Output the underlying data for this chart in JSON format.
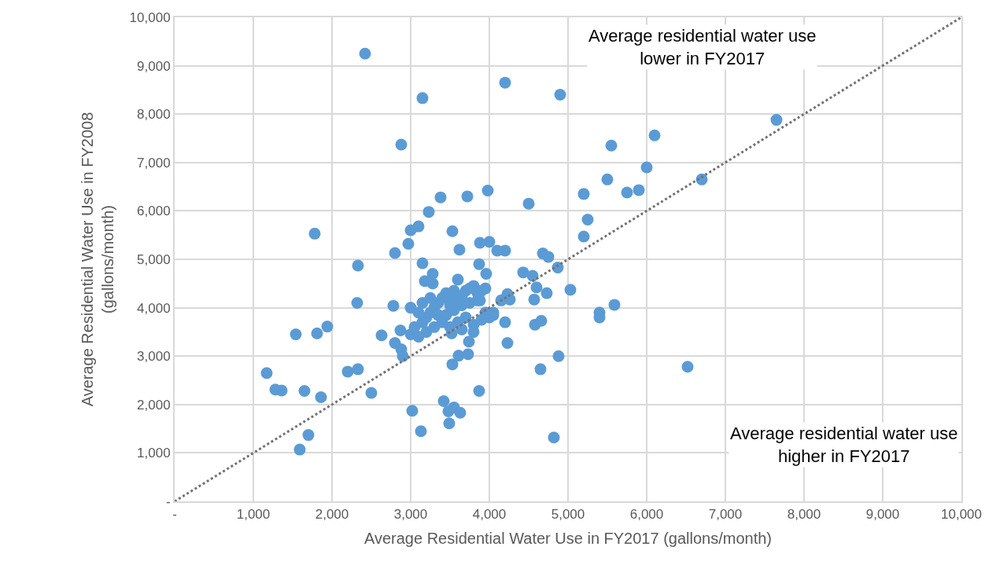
{
  "chart_data": {
    "type": "scatter",
    "xlabel": "Average Residential Water Use in FY2017 (gallons/month)",
    "ylabel": "Average Residential Water Use in FY2008\n(gallons/month)",
    "annotations": [
      "Average residential water use\nlower in FY2017",
      "Average residential water use\nhigher in FY2017"
    ],
    "xlim": [
      0,
      10000
    ],
    "ylim": [
      0,
      10000
    ],
    "xticks": [
      {
        "value": 0,
        "label": "-"
      },
      {
        "value": 1000,
        "label": "1,000"
      },
      {
        "value": 2000,
        "label": "2,000"
      },
      {
        "value": 3000,
        "label": "3,000"
      },
      {
        "value": 4000,
        "label": "4,000"
      },
      {
        "value": 5000,
        "label": "5,000"
      },
      {
        "value": 6000,
        "label": "6,000"
      },
      {
        "value": 7000,
        "label": "7,000"
      },
      {
        "value": 8000,
        "label": "8,000"
      },
      {
        "value": 9000,
        "label": "9,000"
      },
      {
        "value": 10000,
        "label": "10,000"
      }
    ],
    "yticks": [
      {
        "value": 0,
        "label": "-"
      },
      {
        "value": 1000,
        "label": "1,000"
      },
      {
        "value": 2000,
        "label": "2,000"
      },
      {
        "value": 3000,
        "label": "3,000"
      },
      {
        "value": 4000,
        "label": "4,000"
      },
      {
        "value": 5000,
        "label": "5,000"
      },
      {
        "value": 6000,
        "label": "6,000"
      },
      {
        "value": 7000,
        "label": "7,000"
      },
      {
        "value": 8000,
        "label": "8,000"
      },
      {
        "value": 9000,
        "label": "9,000"
      },
      {
        "value": 10000,
        "label": "10,000"
      }
    ],
    "grid": true,
    "marker": "circle",
    "series": [
      {
        "color": "#5b9bd5",
        "x": [
          2420,
          4200,
          3150,
          4900,
          2880,
          7650,
          6100,
          5550,
          6000,
          5500,
          6700,
          5900,
          5750,
          5200,
          3980,
          3720,
          3380,
          4500,
          3230,
          1780,
          3100,
          3000,
          3530,
          2970,
          2800,
          5250,
          5200,
          4000,
          3880,
          4100,
          4200,
          3620,
          3150,
          2330,
          4680,
          4750,
          4430,
          4550,
          4870,
          3870,
          3960,
          3280,
          3180,
          3280,
          3600,
          4230,
          4260,
          4600,
          4570,
          4730,
          5030,
          5590,
          5400,
          5400,
          4660,
          4580,
          4200,
          4150,
          4230,
          4880,
          4650,
          6520,
          3610,
          3730,
          3740,
          3530,
          3870,
          3420,
          3020,
          3550,
          3480,
          3630,
          3490,
          3130,
          4820,
          2320,
          2780,
          1540,
          1810,
          1940,
          2630,
          2870,
          2880,
          2900,
          2800,
          2200,
          2330,
          2500,
          1170,
          1280,
          1360,
          1650,
          1860,
          1700,
          1590,
          3000,
          3100,
          3050,
          3150,
          3200,
          3250,
          3300,
          3350,
          3400,
          3450,
          3500,
          3550,
          3600,
          3650,
          3700,
          3750,
          3800,
          3850,
          3900,
          3950,
          3400,
          3500,
          3600,
          3700,
          3800,
          3900,
          4000,
          4050,
          3300,
          3200,
          3100,
          3150,
          3250,
          3350,
          3450,
          3500,
          3550,
          3650,
          3750,
          3850,
          3950,
          4050,
          3520,
          3650,
          3800,
          3880,
          3000
        ],
        "values": [
          9250,
          8650,
          8330,
          8400,
          7370,
          7880,
          7560,
          7350,
          6900,
          6650,
          6650,
          6430,
          6380,
          6350,
          6420,
          6300,
          6280,
          6150,
          5980,
          5530,
          5680,
          5600,
          5580,
          5320,
          5130,
          5820,
          5470,
          5360,
          5340,
          5180,
          5180,
          5200,
          4920,
          4870,
          5120,
          5050,
          4730,
          4660,
          4830,
          4900,
          4700,
          4700,
          4550,
          4500,
          4580,
          4280,
          4170,
          4420,
          4170,
          4300,
          4370,
          4060,
          3900,
          3800,
          3730,
          3650,
          3700,
          4150,
          3270,
          3000,
          2730,
          2780,
          3010,
          3040,
          3300,
          2830,
          2280,
          2070,
          1870,
          1940,
          1860,
          1830,
          1610,
          1450,
          1320,
          4100,
          4040,
          3450,
          3470,
          3610,
          3430,
          3530,
          3140,
          3000,
          3270,
          2680,
          2730,
          2240,
          2650,
          2310,
          2290,
          2280,
          2150,
          1370,
          1070,
          3450,
          3400,
          3600,
          3700,
          3800,
          3900,
          4000,
          4100,
          4200,
          4300,
          4050,
          3950,
          4150,
          4250,
          4350,
          4400,
          4450,
          4300,
          4350,
          4400,
          3700,
          3600,
          3700,
          3800,
          3650,
          3750,
          3800,
          3900,
          3600,
          3500,
          3900,
          4100,
          4200,
          3850,
          3850,
          4250,
          4350,
          4050,
          4100,
          4150,
          3900,
          3850,
          3470,
          3550,
          3500,
          4150,
          4000
        ]
      },
      {
        "type": "line",
        "color": "#767171",
        "line_style": "dotted",
        "marker": "none",
        "x": [
          0,
          10000
        ],
        "values": [
          0,
          10000
        ]
      }
    ]
  }
}
